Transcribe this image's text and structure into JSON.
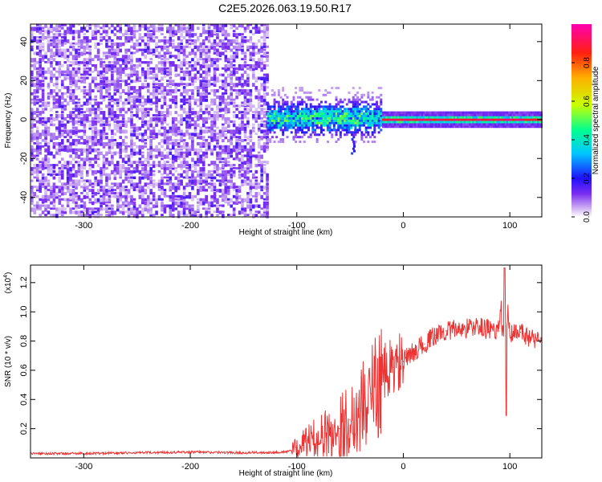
{
  "title": "C2E5.2026.063.19.50.R17",
  "chart_data": [
    {
      "type": "heatmap",
      "title": "C2E5.2026.063.19.50.R17",
      "xlabel": "Height of straight line (km)",
      "ylabel": "Frequency (Hz)",
      "xlim": [
        -350,
        130
      ],
      "ylim": [
        -50,
        49
      ],
      "xticks": [
        -300,
        -200,
        -100,
        0,
        100
      ],
      "xtick_labels": [
        "-300",
        "-200",
        "-100",
        "0",
        "100"
      ],
      "yticks": [
        -40,
        -20,
        0,
        20,
        40
      ],
      "ytick_labels": [
        "-40",
        "-20",
        "0",
        "20",
        "40"
      ],
      "colorbar": {
        "label": "Normalized spectral amplitude",
        "range": [
          0,
          1
        ],
        "ticks": [
          0.0,
          0.2,
          0.4,
          0.6,
          0.8
        ],
        "tick_labels": [
          "0.0",
          "0.2",
          "0.4",
          "0.6",
          "0.8"
        ],
        "colormap": [
          "#ffffff",
          "#c9a8f2",
          "#7a2ef0",
          "#2010ff",
          "#00c8ff",
          "#00ff90",
          "#c8ff00",
          "#ffb000",
          "#ff2010",
          "#ff00b0"
        ]
      },
      "regions": [
        {
          "x_range": [
            -350,
            -128
          ],
          "f_range": [
            -50,
            49
          ],
          "description": "broadband noise",
          "amplitude": 0.12
        },
        {
          "x_range": [
            -128,
            -20
          ],
          "f_range": [
            -10,
            14
          ],
          "description": "emerging signal",
          "amplitude": 0.4
        },
        {
          "x_range": [
            -20,
            130
          ],
          "f_range": [
            -1.5,
            1.5
          ],
          "description": "narrow carrier near 0 Hz",
          "amplitude": 0.9
        }
      ]
    },
    {
      "type": "line",
      "xlabel": "Height of straight line (km)",
      "ylabel": "SNR (10 * v/v)",
      "scale_label": "(x10",
      "scale_exponent": "4",
      "xlim": [
        -350,
        130
      ],
      "ylim": [
        0,
        1.32
      ],
      "xticks": [
        -300,
        -200,
        -100,
        0,
        100
      ],
      "xtick_labels": [
        "-300",
        "-200",
        "-100",
        "0",
        "100"
      ],
      "yticks": [
        0.2,
        0.4,
        0.6,
        0.8,
        1.0,
        1.2
      ],
      "ytick_labels": [
        "0.2",
        "0.4",
        "0.6",
        "0.8",
        "1.0",
        "1.2"
      ],
      "series": [
        {
          "name": "SNR",
          "color": "#ee3333",
          "x": [
            -350,
            -300,
            -250,
            -200,
            -150,
            -110,
            -100,
            -90,
            -80,
            -70,
            -60,
            -50,
            -40,
            -30,
            -20,
            -10,
            0,
            10,
            20,
            30,
            40,
            50,
            60,
            70,
            80,
            90,
            95,
            100,
            110,
            120,
            130
          ],
          "values": [
            0.03,
            0.03,
            0.035,
            0.04,
            0.035,
            0.04,
            0.07,
            0.12,
            0.14,
            0.16,
            0.2,
            0.26,
            0.34,
            0.44,
            0.55,
            0.62,
            0.66,
            0.73,
            0.78,
            0.84,
            0.87,
            0.88,
            0.89,
            0.9,
            0.88,
            0.87,
            1.3,
            0.84,
            0.86,
            0.82,
            0.81
          ]
        }
      ]
    }
  ]
}
